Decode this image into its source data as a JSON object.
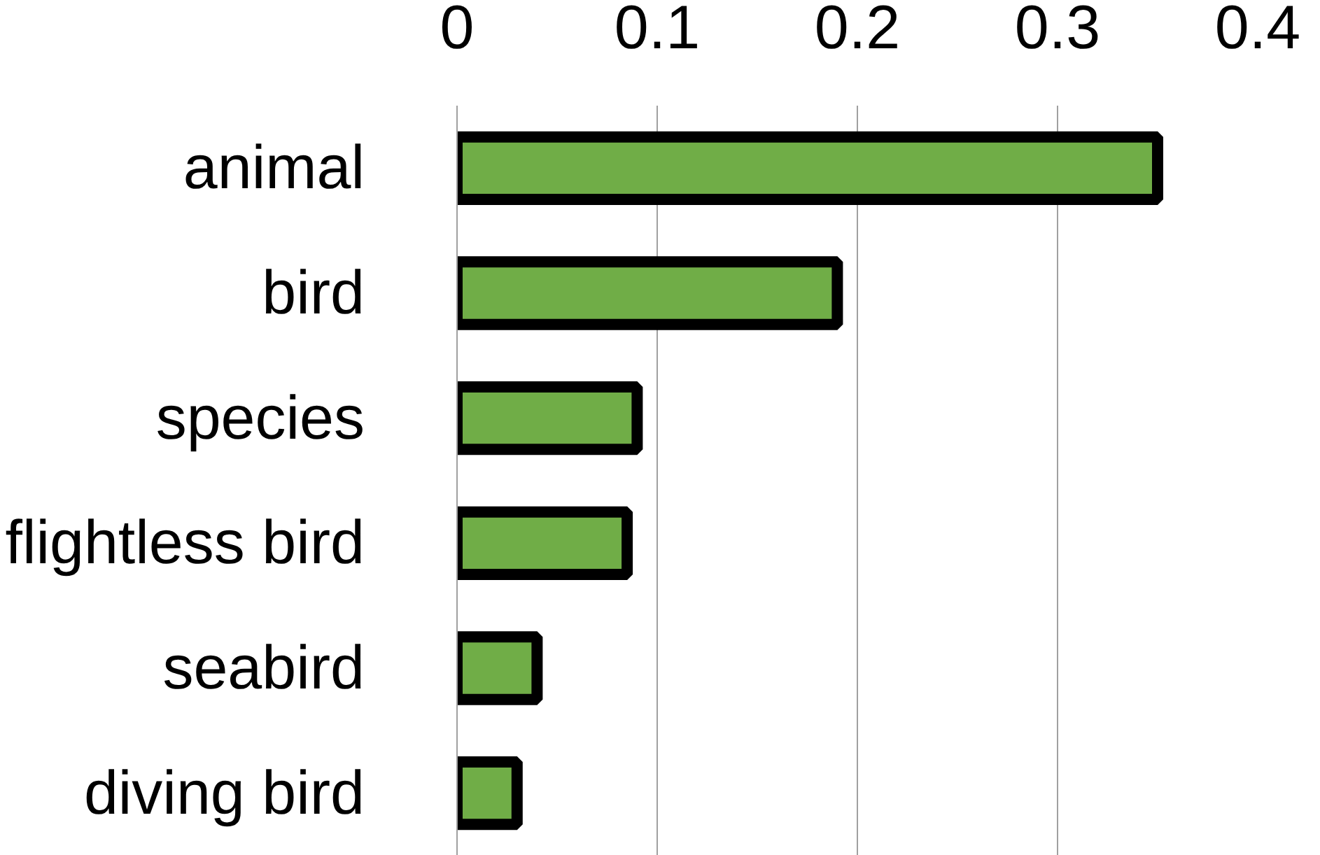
{
  "chart_data": {
    "type": "bar",
    "orientation": "horizontal",
    "categories": [
      "animal",
      "bird",
      "species",
      "flightless bird",
      "seabird",
      "diving bird"
    ],
    "values": [
      0.35,
      0.19,
      0.09,
      0.085,
      0.04,
      0.03
    ],
    "color": "#70ad47",
    "xlim": [
      0,
      0.4
    ],
    "xticks": [
      0,
      0.1,
      0.2,
      0.3,
      0.4
    ],
    "grid": "x"
  }
}
